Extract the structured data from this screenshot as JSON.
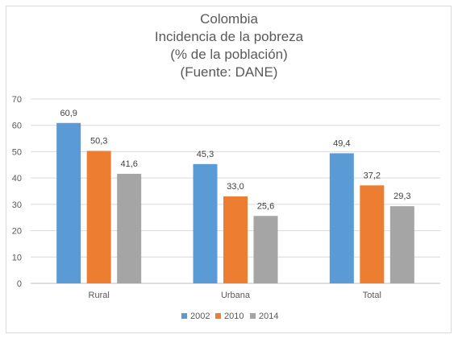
{
  "chart_data": {
    "type": "bar",
    "title_lines": [
      "Colombia",
      "Incidencia de la pobreza",
      "(% de la población)",
      "(Fuente: DANE)"
    ],
    "categories": [
      "Rural",
      "Urbana",
      "Total"
    ],
    "series": [
      {
        "name": "2002",
        "values": [
          60.9,
          45.3,
          49.4
        ],
        "labels": [
          "60,9",
          "45,3",
          "49,4"
        ],
        "color": "#5b9bd5"
      },
      {
        "name": "2010",
        "values": [
          50.3,
          33.0,
          37.2
        ],
        "labels": [
          "50,3",
          "33,0",
          "37,2"
        ],
        "color": "#ed7d31"
      },
      {
        "name": "2014",
        "values": [
          41.6,
          25.6,
          29.3
        ],
        "labels": [
          "41,6",
          "25,6",
          "29,3"
        ],
        "color": "#a5a5a5"
      }
    ],
    "yticks": [
      "0",
      "10",
      "20",
      "30",
      "40",
      "50",
      "60",
      "70"
    ],
    "ylim": [
      0,
      70
    ],
    "grid": true,
    "legend_position": "bottom"
  }
}
